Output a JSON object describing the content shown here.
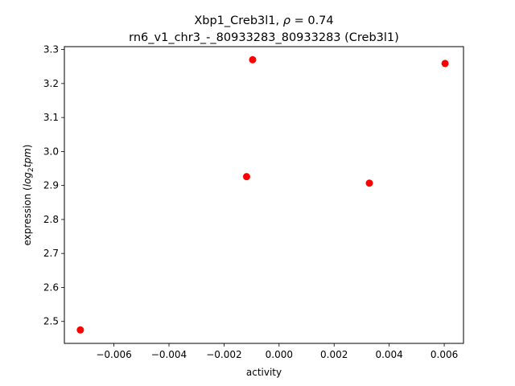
{
  "chart_data": {
    "type": "scatter",
    "title_line1_prefix": "Xbp1_Creb3l1, ",
    "title_rho_symbol": "ρ",
    "title_rho_value": " = 0.74",
    "title_line2": "rn6_v1_chr3_-_80933283_80933283 (Creb3l1)",
    "xlabel": "activity",
    "ylabel_prefix": "expression (",
    "ylabel_log": "log",
    "ylabel_sub": "2",
    "ylabel_tpm": "tpm",
    "ylabel_suffix": ")",
    "xlim": [
      -0.0078,
      0.0067
    ],
    "ylim": [
      2.4355,
      3.3085
    ],
    "xticks": [
      -0.006,
      -0.004,
      -0.002,
      0.0,
      0.002,
      0.004,
      0.006
    ],
    "xtick_labels": [
      "−0.006",
      "−0.004",
      "−0.002",
      "0.000",
      "0.002",
      "0.004",
      "0.006"
    ],
    "yticks": [
      2.5,
      2.6,
      2.7,
      2.8,
      2.9,
      3.0,
      3.1,
      3.2,
      3.3
    ],
    "ytick_labels": [
      "2.5",
      "2.6",
      "2.7",
      "2.8",
      "2.9",
      "3.0",
      "3.1",
      "3.2",
      "3.3"
    ],
    "grid": false,
    "marker_color": "#ff0000",
    "points": [
      {
        "x": -0.00722,
        "y": 2.475
      },
      {
        "x": -0.00118,
        "y": 2.926
      },
      {
        "x": -0.00096,
        "y": 3.27
      },
      {
        "x": 0.00328,
        "y": 2.907
      },
      {
        "x": 0.00603,
        "y": 3.259
      }
    ]
  }
}
